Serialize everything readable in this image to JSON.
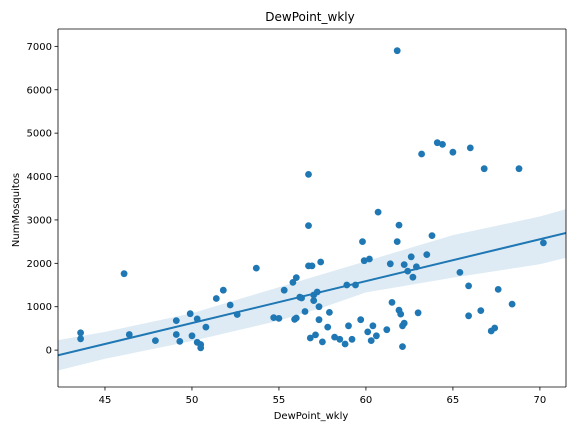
{
  "chart_data": {
    "type": "scatter",
    "title": "DewPoint_wkly",
    "xlabel": "DewPoint_wkly",
    "ylabel": "NumMosquitos",
    "xlim": [
      42.3,
      71.5
    ],
    "ylim": [
      -850,
      7400
    ],
    "xticks": [
      45,
      50,
      55,
      60,
      65,
      70
    ],
    "yticks": [
      0,
      1000,
      2000,
      3000,
      4000,
      5000,
      6000,
      7000
    ],
    "grid": false,
    "colors": {
      "points": "#1f77b4",
      "regression_line": "#1f77b4",
      "confidence_band": "#1f77b4"
    },
    "regression": {
      "x": [
        42.3,
        71.5
      ],
      "y": [
        -120,
        2700
      ]
    },
    "confidence_band": {
      "x": [
        42.3,
        45,
        50,
        55,
        57.5,
        60,
        65,
        70,
        71.5
      ],
      "upper": [
        230,
        420,
        850,
        1450,
        1750,
        2050,
        2650,
        3080,
        3250
      ],
      "lower": [
        -470,
        -200,
        210,
        680,
        980,
        1330,
        1670,
        1980,
        2130
      ]
    },
    "points": [
      {
        "x": 43.6,
        "y": 400
      },
      {
        "x": 43.6,
        "y": 260
      },
      {
        "x": 46.1,
        "y": 1760
      },
      {
        "x": 46.4,
        "y": 360
      },
      {
        "x": 47.9,
        "y": 220
      },
      {
        "x": 49.1,
        "y": 680
      },
      {
        "x": 49.1,
        "y": 360
      },
      {
        "x": 49.3,
        "y": 200
      },
      {
        "x": 49.9,
        "y": 840
      },
      {
        "x": 50.0,
        "y": 330
      },
      {
        "x": 50.3,
        "y": 720
      },
      {
        "x": 50.3,
        "y": 180
      },
      {
        "x": 50.5,
        "y": 130
      },
      {
        "x": 50.5,
        "y": 50
      },
      {
        "x": 50.8,
        "y": 530
      },
      {
        "x": 51.4,
        "y": 1190
      },
      {
        "x": 51.8,
        "y": 1380
      },
      {
        "x": 52.2,
        "y": 1040
      },
      {
        "x": 52.6,
        "y": 820
      },
      {
        "x": 53.7,
        "y": 1890
      },
      {
        "x": 54.7,
        "y": 750
      },
      {
        "x": 55.0,
        "y": 730
      },
      {
        "x": 55.3,
        "y": 1380
      },
      {
        "x": 55.8,
        "y": 1560
      },
      {
        "x": 55.9,
        "y": 710
      },
      {
        "x": 56.0,
        "y": 1670
      },
      {
        "x": 56.0,
        "y": 740
      },
      {
        "x": 56.2,
        "y": 1220
      },
      {
        "x": 56.3,
        "y": 1200
      },
      {
        "x": 56.5,
        "y": 890
      },
      {
        "x": 56.7,
        "y": 4050
      },
      {
        "x": 56.7,
        "y": 2870
      },
      {
        "x": 56.7,
        "y": 1940
      },
      {
        "x": 56.8,
        "y": 280
      },
      {
        "x": 56.9,
        "y": 1940
      },
      {
        "x": 57.0,
        "y": 1270
      },
      {
        "x": 57.0,
        "y": 1140
      },
      {
        "x": 57.1,
        "y": 350
      },
      {
        "x": 57.2,
        "y": 1340
      },
      {
        "x": 57.3,
        "y": 700
      },
      {
        "x": 57.3,
        "y": 1000
      },
      {
        "x": 57.4,
        "y": 2030
      },
      {
        "x": 57.5,
        "y": 190
      },
      {
        "x": 57.8,
        "y": 530
      },
      {
        "x": 57.9,
        "y": 870
      },
      {
        "x": 58.2,
        "y": 300
      },
      {
        "x": 58.5,
        "y": 250
      },
      {
        "x": 58.8,
        "y": 140
      },
      {
        "x": 58.9,
        "y": 1500
      },
      {
        "x": 59.0,
        "y": 560
      },
      {
        "x": 59.2,
        "y": 250
      },
      {
        "x": 59.4,
        "y": 1500
      },
      {
        "x": 59.7,
        "y": 700
      },
      {
        "x": 59.8,
        "y": 2500
      },
      {
        "x": 59.9,
        "y": 2060
      },
      {
        "x": 60.1,
        "y": 420
      },
      {
        "x": 60.2,
        "y": 2100
      },
      {
        "x": 60.3,
        "y": 220
      },
      {
        "x": 60.4,
        "y": 560
      },
      {
        "x": 60.6,
        "y": 330
      },
      {
        "x": 60.7,
        "y": 3180
      },
      {
        "x": 61.2,
        "y": 470
      },
      {
        "x": 61.4,
        "y": 1990
      },
      {
        "x": 61.5,
        "y": 1100
      },
      {
        "x": 61.8,
        "y": 6900
      },
      {
        "x": 61.8,
        "y": 2500
      },
      {
        "x": 61.9,
        "y": 2880
      },
      {
        "x": 61.9,
        "y": 920
      },
      {
        "x": 62.0,
        "y": 830
      },
      {
        "x": 62.1,
        "y": 560
      },
      {
        "x": 62.1,
        "y": 80
      },
      {
        "x": 62.2,
        "y": 1970
      },
      {
        "x": 62.2,
        "y": 620
      },
      {
        "x": 62.4,
        "y": 1820
      },
      {
        "x": 62.6,
        "y": 2150
      },
      {
        "x": 62.7,
        "y": 1680
      },
      {
        "x": 62.9,
        "y": 1920
      },
      {
        "x": 63.0,
        "y": 860
      },
      {
        "x": 63.2,
        "y": 4520
      },
      {
        "x": 63.5,
        "y": 2200
      },
      {
        "x": 63.8,
        "y": 2640
      },
      {
        "x": 64.1,
        "y": 4780
      },
      {
        "x": 64.4,
        "y": 4740
      },
      {
        "x": 65.0,
        "y": 4560
      },
      {
        "x": 65.4,
        "y": 1790
      },
      {
        "x": 65.9,
        "y": 1480
      },
      {
        "x": 65.9,
        "y": 790
      },
      {
        "x": 66.0,
        "y": 4660
      },
      {
        "x": 66.6,
        "y": 910
      },
      {
        "x": 66.8,
        "y": 4180
      },
      {
        "x": 67.2,
        "y": 440
      },
      {
        "x": 67.4,
        "y": 510
      },
      {
        "x": 67.6,
        "y": 1400
      },
      {
        "x": 68.4,
        "y": 1060
      },
      {
        "x": 68.8,
        "y": 4180
      },
      {
        "x": 70.2,
        "y": 2470
      }
    ]
  }
}
